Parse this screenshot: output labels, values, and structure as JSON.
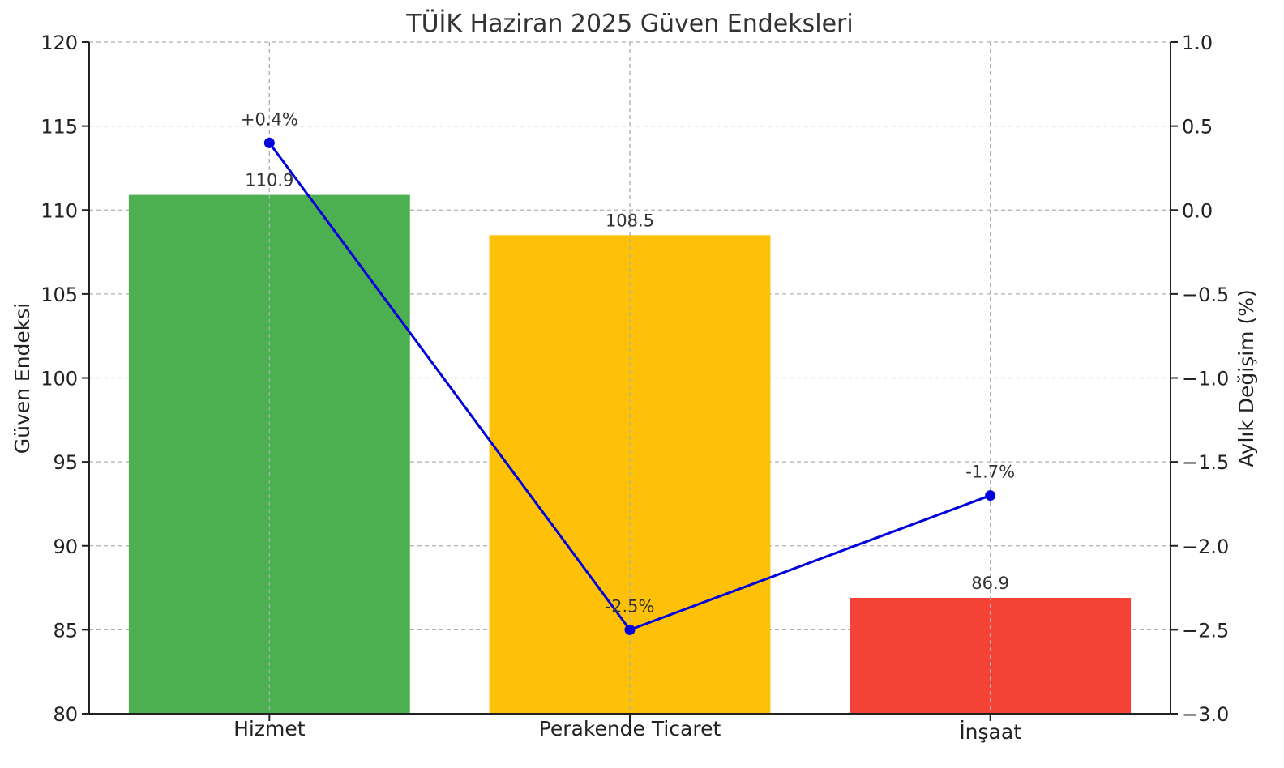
{
  "chart_data": {
    "type": "bar",
    "title": "TÜİK Haziran 2025 Güven Endeksleri",
    "categories": [
      "Hizmet",
      "Perakende Ticaret",
      "İnşaat"
    ],
    "ylabel": "Güven Endeksi",
    "y2label": "Aylık Değişim (%)",
    "ylim": [
      80,
      120
    ],
    "y2lim": [
      -3.0,
      1.0
    ],
    "yticks": [
      "80",
      "85",
      "90",
      "95",
      "100",
      "105",
      "110",
      "115",
      "120"
    ],
    "y2ticks": [
      "−3.0",
      "−2.5",
      "−2.0",
      "−1.5",
      "−1.0",
      "−0.5",
      "0.0",
      "0.5",
      "1.0"
    ],
    "grid": true,
    "series": [
      {
        "type": "bar",
        "axis": "left",
        "values": [
          110.9,
          108.5,
          86.9
        ],
        "labels": [
          "110.9",
          "108.5",
          "86.9"
        ],
        "colors": [
          "#4caf50",
          "#ffc107",
          "#f44336"
        ]
      },
      {
        "type": "line",
        "axis": "right",
        "values": [
          0.4,
          -2.5,
          -1.7
        ],
        "labels": [
          "+0.4%",
          "-2.5%",
          "-1.7%"
        ],
        "color": "#0000dd"
      }
    ]
  }
}
